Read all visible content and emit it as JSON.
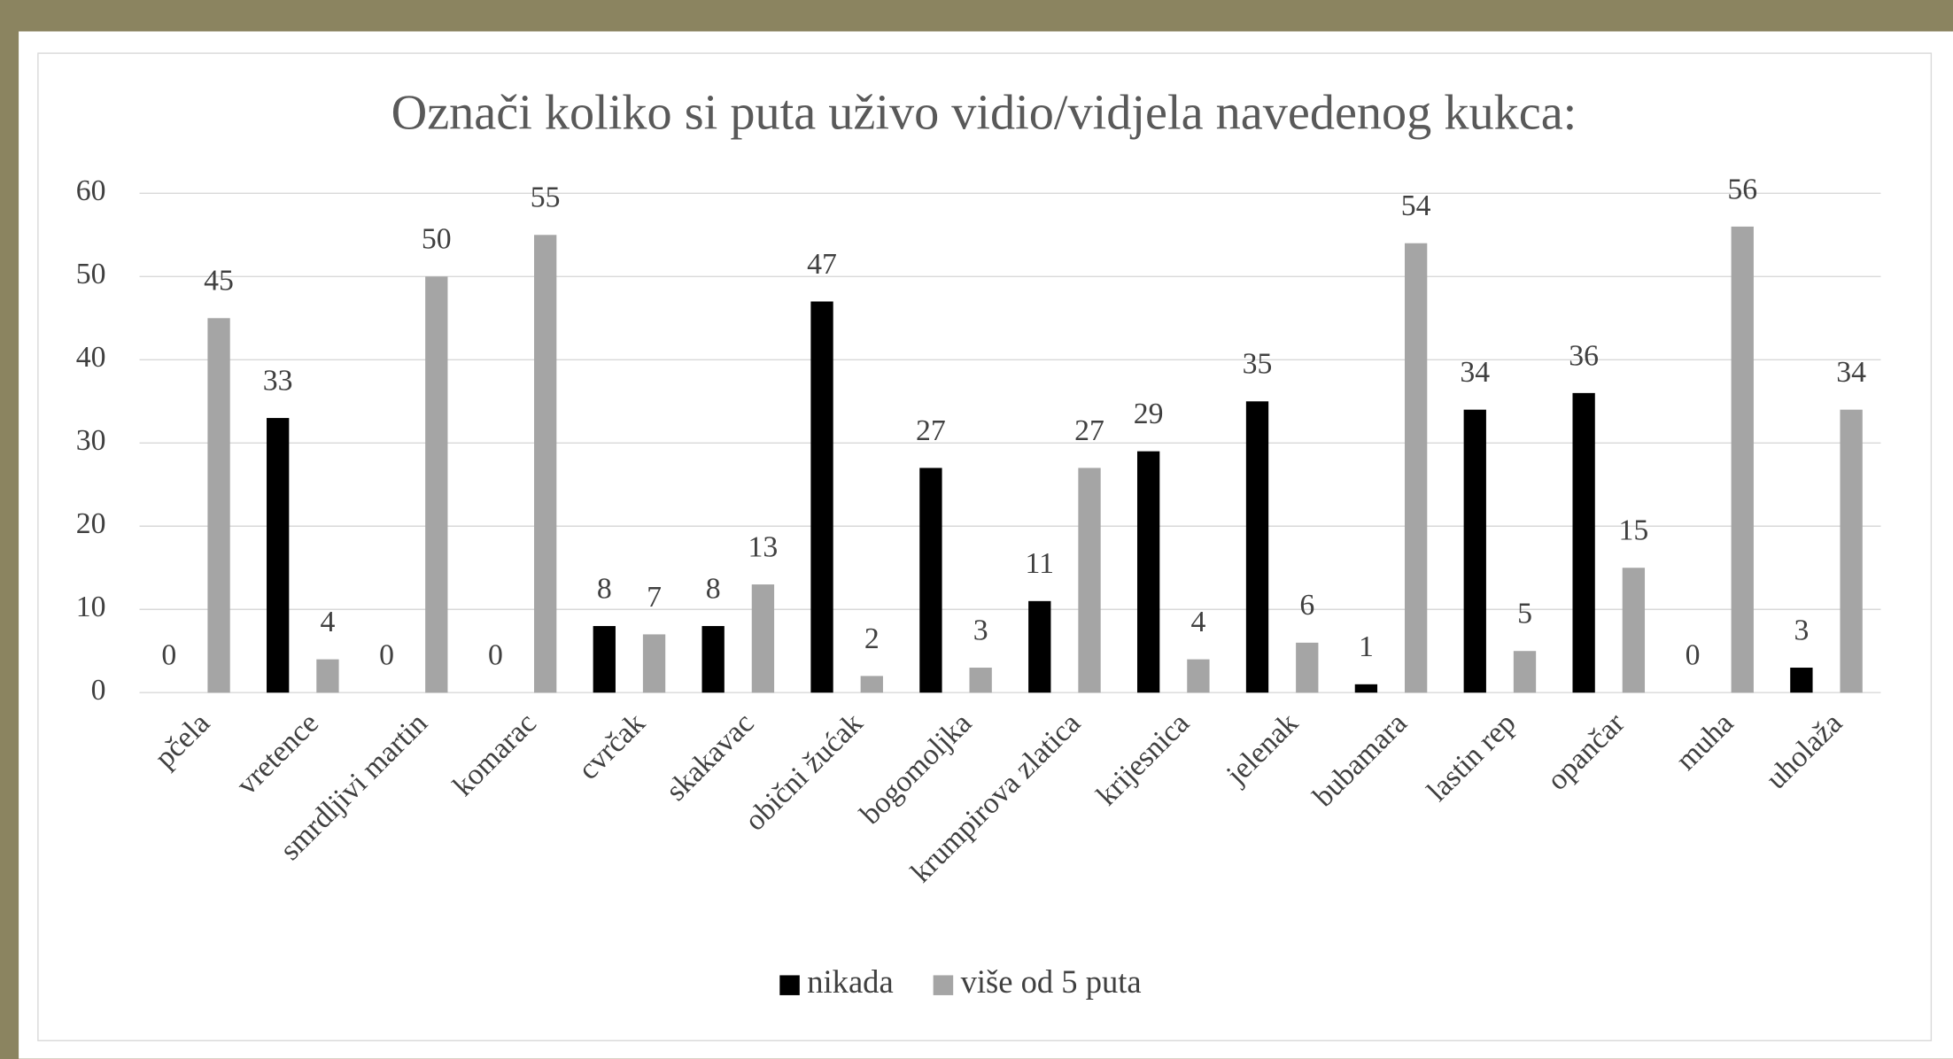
{
  "chart_data": {
    "type": "bar",
    "title": "Označi koliko si puta uživo vidio/vidjela navedenog kukca:",
    "categories": [
      "pčela",
      "vretence",
      "smrdljivi martin",
      "komarac",
      "cvrčak",
      "skakavac",
      "obični žućak",
      "bogomoljka",
      "krumpirova zlatica",
      "krijesnica",
      "jelenak",
      "bubamara",
      "lastin rep",
      "opančar",
      "muha",
      "uholaža"
    ],
    "series": [
      {
        "name": "nikada",
        "color": "#000000",
        "values": [
          0,
          33,
          0,
          0,
          8,
          8,
          47,
          27,
          11,
          29,
          35,
          1,
          34,
          36,
          0,
          3
        ]
      },
      {
        "name": "više od 5 puta",
        "color": "#a5a5a5",
        "values": [
          45,
          4,
          50,
          55,
          7,
          13,
          2,
          3,
          27,
          4,
          6,
          54,
          5,
          15,
          56,
          34
        ]
      }
    ],
    "ylim": [
      0,
      60
    ],
    "yticks": [
      0,
      10,
      20,
      30,
      40,
      50,
      60
    ],
    "grid": true,
    "legend": "bottom"
  }
}
